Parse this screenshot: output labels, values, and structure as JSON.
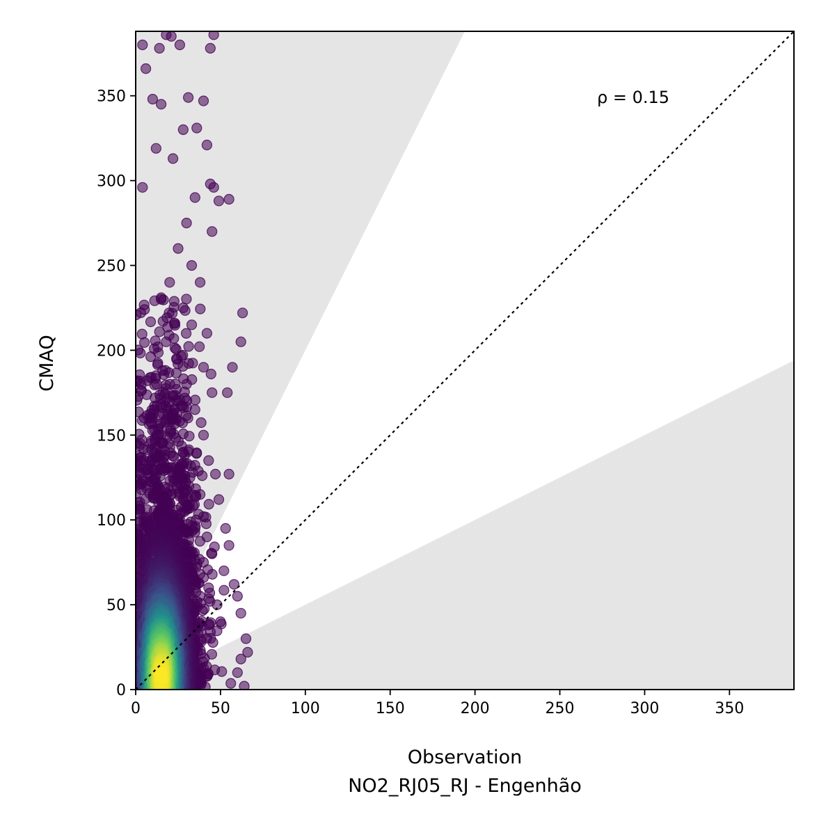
{
  "chart_data": {
    "type": "scatter",
    "xlabel": "Observation",
    "xlabel_line2": "NO2_RJ05_RJ - Engenhão",
    "ylabel": "CMAQ",
    "xlim": [
      0,
      388
    ],
    "ylim": [
      0,
      388
    ],
    "x_ticks": [
      0,
      50,
      100,
      150,
      200,
      250,
      300,
      350
    ],
    "y_ticks": [
      0,
      50,
      100,
      150,
      200,
      250,
      300,
      350
    ],
    "annotation": "ρ = 0.15",
    "identity_line": {
      "style": "dotted",
      "color": "#000000"
    },
    "bands": [
      {
        "name": "upper",
        "slope": 2.0,
        "color": "#e5e5e5"
      },
      {
        "name": "lower",
        "slope": 0.5,
        "color": "#e5e5e5"
      }
    ],
    "colormap": [
      "#440154",
      "#3b528b",
      "#21918c",
      "#5ec962",
      "#fde725"
    ],
    "point_alpha": 0.55,
    "x_median": 18,
    "x_spread": 10,
    "y_median": 55,
    "y_max_range": 388,
    "series": [
      {
        "points": [
          [
            4,
            380
          ],
          [
            14,
            378
          ],
          [
            18,
            386
          ],
          [
            26,
            380
          ],
          [
            21,
            385
          ],
          [
            46,
            386
          ],
          [
            6,
            366
          ],
          [
            44,
            378
          ],
          [
            10,
            348
          ],
          [
            15,
            345
          ],
          [
            31,
            349
          ],
          [
            40,
            347
          ],
          [
            28,
            330
          ],
          [
            42,
            321
          ],
          [
            12,
            319
          ],
          [
            22,
            313
          ],
          [
            36,
            331
          ],
          [
            4,
            296
          ],
          [
            44,
            298
          ],
          [
            46,
            296
          ],
          [
            49,
            288
          ],
          [
            55,
            289
          ],
          [
            45,
            270
          ],
          [
            63,
            222
          ],
          [
            62,
            205
          ],
          [
            57,
            190
          ],
          [
            54,
            175
          ],
          [
            47,
            127
          ],
          [
            55,
            127
          ],
          [
            49,
            112
          ],
          [
            53,
            95
          ],
          [
            55,
            85
          ],
          [
            45,
            80
          ],
          [
            52,
            70
          ],
          [
            58,
            62
          ],
          [
            60,
            55
          ],
          [
            62,
            45
          ],
          [
            65,
            30
          ],
          [
            66,
            22
          ],
          [
            62,
            18
          ],
          [
            60,
            10
          ],
          [
            64,
            2
          ],
          [
            40,
            66
          ],
          [
            43,
            60
          ],
          [
            38,
            55
          ],
          [
            48,
            50
          ],
          [
            50,
            40
          ],
          [
            35,
            290
          ],
          [
            30,
            275
          ],
          [
            25,
            260
          ],
          [
            33,
            250
          ],
          [
            20,
            240
          ],
          [
            15,
            230
          ],
          [
            38,
            240
          ],
          [
            28,
            225
          ],
          [
            33,
            215
          ],
          [
            42,
            210
          ],
          [
            18,
            205
          ],
          [
            24,
            195
          ],
          [
            40,
            190
          ],
          [
            12,
            185
          ],
          [
            30,
            180
          ],
          [
            45,
            175
          ],
          [
            35,
            165
          ],
          [
            22,
            160
          ],
          [
            40,
            150
          ],
          [
            15,
            150
          ],
          [
            28,
            140
          ],
          [
            43,
            135
          ],
          [
            10,
            130
          ],
          [
            32,
            125
          ],
          [
            38,
            115
          ],
          [
            20,
            110
          ],
          [
            25,
            100
          ],
          [
            35,
            95
          ],
          [
            42,
            90
          ],
          [
            8,
            95
          ],
          [
            15,
            85
          ],
          [
            30,
            80
          ],
          [
            40,
            75
          ]
        ]
      }
    ]
  }
}
